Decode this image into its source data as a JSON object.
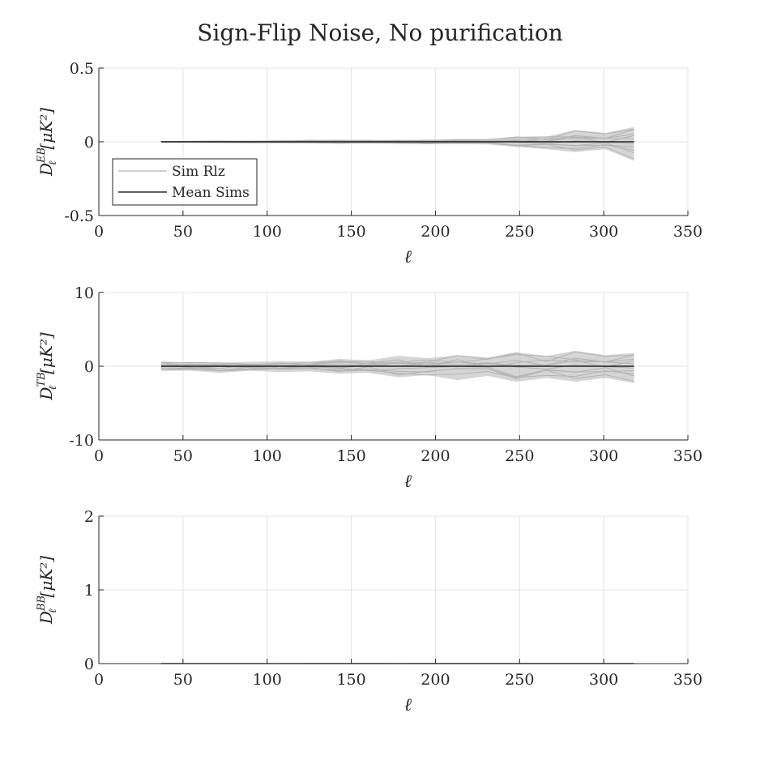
{
  "title": "Sign-Flip Noise, No purification",
  "colors": {
    "sim": "#b3b3b3",
    "mean": "#000000",
    "axis": "#262626",
    "grid": "#e3e3e3"
  },
  "chart_data": [
    {
      "type": "line",
      "ylabel": {
        "base": "D",
        "sup": "EB",
        "sub": "ℓ",
        "unit": "[μK²]"
      },
      "xlabel": "ℓ",
      "xlim": [
        0,
        350
      ],
      "ylim": [
        -0.5,
        0.5
      ],
      "xticks": [
        0,
        50,
        100,
        150,
        200,
        250,
        300,
        350
      ],
      "yticks": [
        -0.5,
        0,
        0.5
      ],
      "ytick_labels": [
        "-0.5",
        "0",
        "0.5"
      ],
      "grid": true,
      "legend": {
        "position": "lower-left",
        "entries": [
          "Sim Rlz",
          "Mean Sims"
        ]
      },
      "x": [
        37,
        54,
        72,
        90,
        107,
        125,
        143,
        160,
        178,
        195,
        213,
        231,
        248,
        266,
        283,
        301,
        318
      ],
      "series": [
        {
          "name": "Mean Sims",
          "values": [
            0,
            0,
            0,
            0,
            0,
            0,
            0,
            0,
            0,
            0,
            0,
            0,
            0,
            0,
            0,
            0,
            0
          ]
        }
      ],
      "sim_envelope": {
        "upper": [
          0.002,
          0.004,
          0.006,
          0.008,
          0.01,
          0.012,
          0.014,
          0.012,
          0.014,
          0.014,
          0.016,
          0.018,
          0.035,
          0.035,
          0.08,
          0.06,
          0.1
        ],
        "lower": [
          -0.002,
          -0.004,
          -0.006,
          -0.008,
          -0.01,
          -0.012,
          -0.014,
          -0.012,
          -0.014,
          -0.014,
          -0.016,
          -0.018,
          -0.035,
          -0.05,
          -0.07,
          -0.05,
          -0.13
        ]
      }
    },
    {
      "type": "line",
      "ylabel": {
        "base": "D",
        "sup": "TB",
        "sub": "ℓ",
        "unit": "[μK²]"
      },
      "xlabel": "ℓ",
      "xlim": [
        0,
        350
      ],
      "ylim": [
        -10,
        10
      ],
      "xticks": [
        0,
        50,
        100,
        150,
        200,
        250,
        300,
        350
      ],
      "yticks": [
        -10,
        0,
        10
      ],
      "ytick_labels": [
        "-10",
        "0",
        "10"
      ],
      "grid": true,
      "x": [
        37,
        54,
        72,
        90,
        107,
        125,
        143,
        160,
        178,
        195,
        213,
        231,
        248,
        266,
        283,
        301,
        318
      ],
      "series": [
        {
          "name": "Mean Sims",
          "values": [
            0,
            0,
            0,
            0,
            0,
            0,
            0,
            0,
            0,
            0,
            0,
            0,
            0,
            0,
            0,
            0,
            0
          ]
        }
      ],
      "sim_envelope": {
        "upper": [
          0.6,
          0.5,
          0.5,
          0.6,
          0.7,
          0.6,
          1.0,
          0.8,
          1.4,
          1.1,
          1.5,
          1.2,
          1.9,
          1.4,
          2.1,
          1.5,
          1.8
        ],
        "lower": [
          -0.6,
          -0.6,
          -0.9,
          -0.6,
          -0.8,
          -0.7,
          -1.0,
          -0.9,
          -1.5,
          -1.2,
          -1.9,
          -1.3,
          -2.1,
          -1.6,
          -2.1,
          -1.6,
          -2.3
        ]
      }
    },
    {
      "type": "line",
      "ylabel": {
        "base": "D",
        "sup": "BB",
        "sub": "ℓ",
        "unit": "[μK²]"
      },
      "xlabel": "ℓ",
      "xlim": [
        0,
        350
      ],
      "ylim": [
        0,
        2
      ],
      "xticks": [
        0,
        50,
        100,
        150,
        200,
        250,
        300,
        350
      ],
      "yticks": [
        0,
        1,
        2
      ],
      "ytick_labels": [
        "0",
        "1",
        "2"
      ],
      "grid": true,
      "x": [
        37,
        54,
        72,
        90,
        107,
        125,
        143,
        160,
        178,
        195,
        213,
        231,
        248,
        266,
        283,
        301,
        318
      ],
      "series": [
        {
          "name": "Mean Sims",
          "values": [
            0,
            0,
            0,
            0,
            0,
            0,
            0,
            0,
            0,
            0,
            0,
            0,
            0,
            0,
            0,
            0,
            0
          ]
        }
      ],
      "sim_envelope": {
        "upper": [
          0.003,
          0.003,
          0.003,
          0.003,
          0.003,
          0.003,
          0.003,
          0.003,
          0.003,
          0.003,
          0.003,
          0.003,
          0.004,
          0.004,
          0.004,
          0.004,
          0.005
        ],
        "lower": [
          0,
          0,
          0,
          0,
          0,
          0,
          0,
          0,
          0,
          0,
          0,
          0,
          0,
          0,
          0,
          0,
          0
        ]
      }
    }
  ]
}
